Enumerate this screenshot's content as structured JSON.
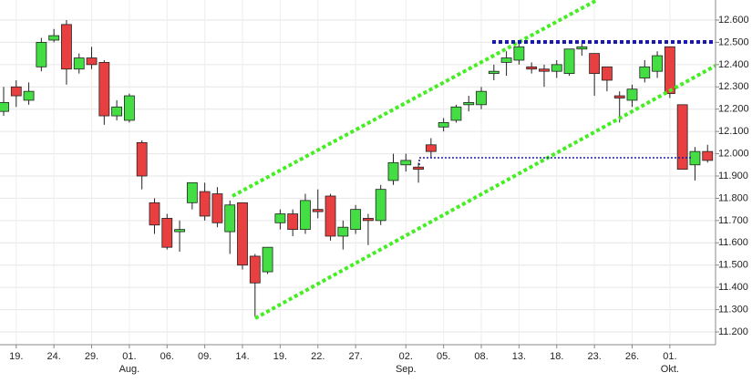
{
  "chart_data": {
    "type": "candlestick",
    "categories": [
      null,
      "19.",
      null,
      null,
      "24.",
      null,
      null,
      "29.",
      null,
      null,
      "01.",
      null,
      null,
      "06.",
      null,
      null,
      "09.",
      null,
      null,
      "14.",
      null,
      null,
      "19.",
      null,
      null,
      "22.",
      null,
      null,
      "27.",
      null,
      null,
      null,
      "02.",
      null,
      null,
      "05.",
      null,
      null,
      "08.",
      null,
      null,
      "13.",
      null,
      null,
      "18.",
      null,
      null,
      "23.",
      null,
      null,
      "26.",
      null,
      null,
      "01.",
      null,
      null,
      null
    ],
    "x_sublabels": [
      null,
      null,
      null,
      null,
      null,
      null,
      null,
      null,
      null,
      null,
      "Aug.",
      null,
      null,
      null,
      null,
      null,
      null,
      null,
      null,
      null,
      null,
      null,
      null,
      null,
      null,
      null,
      null,
      null,
      null,
      null,
      null,
      null,
      "Sep.",
      null,
      null,
      null,
      null,
      null,
      null,
      null,
      null,
      null,
      null,
      null,
      null,
      null,
      null,
      null,
      null,
      null,
      null,
      null,
      null,
      "Okt.",
      null,
      null,
      null
    ],
    "open": [
      12.19,
      12.3,
      12.24,
      12.39,
      12.51,
      12.58,
      12.38,
      12.43,
      12.41,
      12.17,
      12.15,
      12.05,
      11.78,
      11.71,
      11.65,
      11.78,
      11.83,
      11.82,
      11.65,
      11.78,
      11.54,
      11.47,
      11.69,
      11.73,
      11.66,
      11.75,
      11.81,
      11.63,
      11.66,
      11.71,
      11.7,
      11.88,
      11.95,
      11.94,
      12.04,
      12.12,
      12.15,
      12.22,
      12.22,
      12.36,
      12.41,
      12.42,
      12.39,
      12.38,
      12.37,
      12.36,
      12.47,
      12.45,
      12.39,
      12.26,
      12.24,
      12.34,
      12.37,
      12.48,
      12.22,
      11.95,
      12.01
    ],
    "close": [
      12.23,
      12.26,
      12.28,
      12.5,
      12.53,
      12.38,
      12.43,
      12.4,
      12.17,
      12.21,
      12.26,
      11.9,
      11.68,
      11.58,
      11.66,
      11.87,
      11.72,
      11.69,
      11.77,
      11.5,
      11.42,
      11.58,
      11.73,
      11.66,
      11.79,
      11.74,
      11.63,
      11.67,
      11.75,
      11.7,
      11.84,
      11.96,
      11.97,
      11.93,
      12.01,
      12.14,
      12.21,
      12.23,
      12.28,
      12.37,
      12.43,
      12.48,
      12.38,
      12.37,
      12.4,
      12.47,
      12.48,
      12.36,
      12.33,
      12.25,
      12.29,
      12.39,
      12.44,
      12.27,
      11.93,
      12.01,
      11.97
    ],
    "high": [
      12.3,
      12.33,
      12.32,
      12.52,
      12.56,
      12.6,
      12.45,
      12.48,
      12.42,
      12.24,
      12.27,
      12.06,
      11.8,
      11.73,
      11.7,
      11.87,
      11.87,
      11.85,
      11.79,
      11.78,
      11.55,
      11.58,
      11.75,
      11.75,
      11.82,
      11.84,
      11.82,
      11.7,
      11.77,
      11.73,
      11.86,
      12.0,
      12.0,
      11.96,
      12.07,
      12.16,
      12.22,
      12.26,
      12.3,
      12.4,
      12.46,
      12.5,
      12.41,
      12.4,
      12.42,
      12.47,
      12.5,
      12.45,
      12.39,
      12.28,
      12.31,
      12.42,
      12.46,
      12.48,
      12.22,
      12.03,
      12.04
    ],
    "low": [
      12.17,
      12.21,
      12.22,
      12.37,
      12.5,
      12.31,
      12.36,
      12.38,
      12.13,
      12.15,
      12.14,
      11.84,
      11.64,
      11.57,
      11.56,
      11.75,
      11.7,
      11.67,
      11.55,
      11.48,
      11.27,
      11.46,
      11.66,
      11.63,
      11.64,
      11.71,
      11.61,
      11.57,
      11.64,
      11.59,
      11.68,
      11.86,
      11.92,
      11.87,
      11.98,
      12.1,
      12.14,
      12.19,
      12.2,
      12.33,
      12.35,
      12.4,
      12.36,
      12.3,
      12.34,
      12.35,
      12.44,
      12.26,
      12.28,
      12.14,
      12.21,
      12.32,
      12.34,
      12.25,
      11.93,
      11.88,
      11.96
    ],
    "up_color": "#44dd44",
    "down_color": "#e84040",
    "ylim": [
      11.2,
      12.6
    ],
    "yticks": [
      {
        "value": 11.2,
        "label": "11.200"
      },
      {
        "value": 11.3,
        "label": "11.300"
      },
      {
        "value": 11.4,
        "label": "11.400"
      },
      {
        "value": 11.5,
        "label": "11.500"
      },
      {
        "value": 11.6,
        "label": "11.600"
      },
      {
        "value": 11.7,
        "label": "11.700"
      },
      {
        "value": 11.8,
        "label": "11.800"
      },
      {
        "value": 11.9,
        "label": "11.900"
      },
      {
        "value": 12.0,
        "label": "12.000"
      },
      {
        "value": 12.1,
        "label": "12.100"
      },
      {
        "value": 12.2,
        "label": "12.200"
      },
      {
        "value": 12.3,
        "label": "12.300"
      },
      {
        "value": 12.4,
        "label": "12.400"
      },
      {
        "value": 12.5,
        "label": "12.500"
      },
      {
        "value": 12.6,
        "label": "12.600"
      }
    ],
    "grid": true
  }
}
